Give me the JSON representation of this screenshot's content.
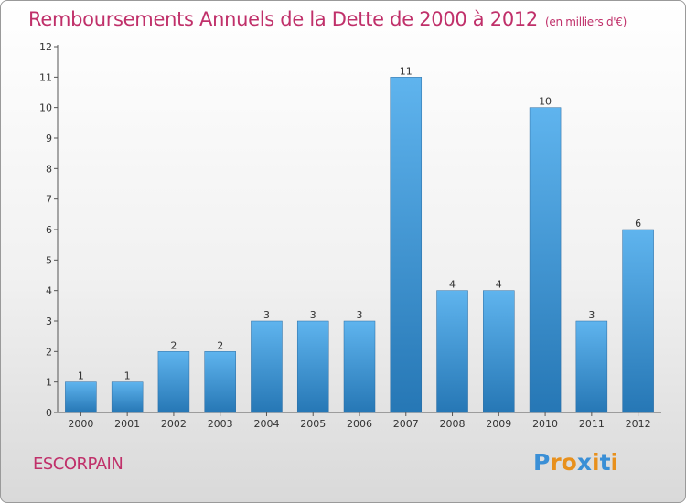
{
  "title": "Remboursements Annuels de la Dette de 2000 à 2012",
  "subtitle": "(en milliers d'€)",
  "commune": "ESCORPAIN",
  "logo": {
    "text": "Proxiti",
    "letter_colors": [
      "#3a8fd6",
      "#e8901c",
      "#e8901c",
      "#3a8fd6",
      "#e8901c",
      "#3a8fd6",
      "#e8901c"
    ]
  },
  "colors": {
    "accent": "#c0306a",
    "bar_top": "#5fb4ee",
    "bar_bottom": "#2677b5"
  },
  "chart_data": {
    "type": "bar",
    "categories": [
      "2000",
      "2001",
      "2002",
      "2003",
      "2004",
      "2005",
      "2006",
      "2007",
      "2008",
      "2009",
      "2010",
      "2011",
      "2012"
    ],
    "values": [
      1,
      1,
      2,
      2,
      3,
      3,
      3,
      11,
      4,
      4,
      10,
      3,
      6
    ],
    "title": "Remboursements Annuels de la Dette de 2000 à 2012",
    "ylim": [
      0,
      12
    ],
    "yticks": [
      0,
      1,
      2,
      3,
      4,
      5,
      6,
      7,
      8,
      9,
      10,
      11,
      12
    ],
    "grid": false,
    "legend": "none"
  }
}
